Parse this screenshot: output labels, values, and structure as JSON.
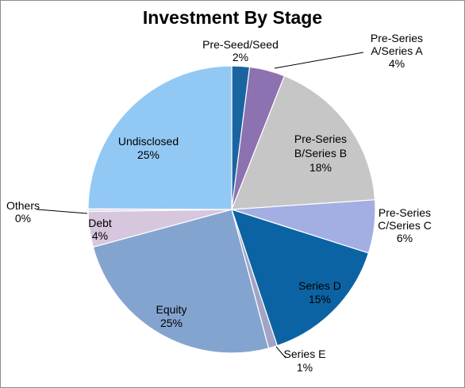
{
  "chart_data": {
    "type": "pie",
    "title": "Investment By Stage",
    "legend": "none",
    "slices": [
      {
        "name": "Pre-Seed/Seed",
        "value": 2,
        "label_lines": [
          "Pre-Seed/Seed"
        ],
        "pct_label": "2%",
        "color": "#1b64a2"
      },
      {
        "name": "Pre-Series A/Series A",
        "value": 4,
        "label_lines": [
          "Pre-Series",
          "A/Series A"
        ],
        "pct_label": "4%",
        "color": "#8c72b0"
      },
      {
        "name": "Pre-Series B/Series B",
        "value": 18,
        "label_lines": [
          "Pre-Series",
          "B/Series B"
        ],
        "pct_label": "18%",
        "color": "#c6c6c6"
      },
      {
        "name": "Pre-Series C/Series C",
        "value": 6,
        "label_lines": [
          "Pre-Series",
          "C/Series C"
        ],
        "pct_label": "6%",
        "color": "#a3aee2"
      },
      {
        "name": "Series D",
        "value": 15,
        "label_lines": [
          "Series D"
        ],
        "pct_label": "15%",
        "color": "#0c63a3"
      },
      {
        "name": "Series E",
        "value": 1,
        "label_lines": [
          "Series E"
        ],
        "pct_label": "1%",
        "color": "#a3a3c6"
      },
      {
        "name": "Equity",
        "value": 25,
        "label_lines": [
          "Equity"
        ],
        "pct_label": "25%",
        "color": "#84a4d0"
      },
      {
        "name": "Debt",
        "value": 4,
        "label_lines": [
          "Debt"
        ],
        "pct_label": "4%",
        "color": "#d6c6de"
      },
      {
        "name": "Others",
        "value": 0.3,
        "label_lines": [
          "Others"
        ],
        "pct_label": "0%",
        "color": "#e0d8e8"
      },
      {
        "name": "Undisclosed",
        "value": 25,
        "label_lines": [
          "Undisclosed"
        ],
        "pct_label": "25%",
        "color": "#92c8f4"
      }
    ]
  }
}
